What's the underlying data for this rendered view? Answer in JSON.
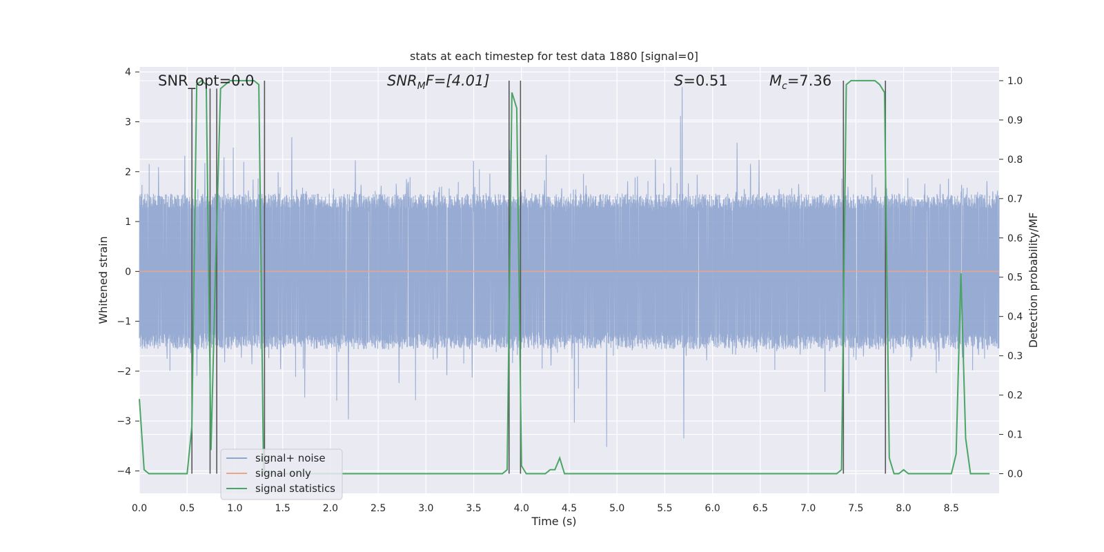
{
  "chart_data": {
    "type": "line",
    "title": "stats at each timestep for test data 1880 [signal=0]",
    "xlabel": "Time (s)",
    "ylabel": "Whitened strain",
    "y2label": "Detection probability/MF",
    "xlim": [
      0,
      9.0
    ],
    "ylim": [
      -4.45,
      4.1
    ],
    "y2lim": [
      -0.05,
      1.035
    ],
    "xticks": [
      "0.0",
      "0.5",
      "1.0",
      "1.5",
      "2.0",
      "2.5",
      "3.0",
      "3.5",
      "4.0",
      "4.5",
      "5.0",
      "5.5",
      "6.0",
      "6.5",
      "7.0",
      "7.5",
      "8.0",
      "8.5"
    ],
    "yticks": [
      "4",
      "3",
      "2",
      "1",
      "0",
      "−1",
      "−2",
      "−3",
      "−4"
    ],
    "y2ticks": [
      "1.0",
      "0.9",
      "0.8",
      "0.7",
      "0.6",
      "0.5",
      "0.4",
      "0.3",
      "0.2",
      "0.1",
      "0.0"
    ],
    "grid": true,
    "legend_position": "lower-left",
    "annotations": {
      "snr_opt": "SNR_opt=0.0",
      "snr_mf_main": "SNR",
      "snr_mf_sub": "M",
      "snr_mf_rest": "F=[4.01]",
      "s_main": "S",
      "s_rest": "=0.51",
      "mc_main": "M",
      "mc_sub": "c",
      "mc_rest": "=7.36"
    },
    "series": [
      {
        "name": "signal+ noise",
        "color": "#8fa5cf",
        "description_values": {
          "envelope_typical": [
            -1.7,
            1.4
          ],
          "extreme_range": [
            -3.6,
            3.7
          ]
        }
      },
      {
        "name": "signal only",
        "color": "#e9a48a",
        "y_constant": 0.0
      },
      {
        "name": "signal statistics",
        "color": "#4aa564",
        "axis": "right",
        "x": [
          0.0,
          0.05,
          0.1,
          0.15,
          0.2,
          0.25,
          0.3,
          0.35,
          0.4,
          0.45,
          0.5,
          0.55,
          0.6,
          0.65,
          0.7,
          0.75,
          0.8,
          0.85,
          0.9,
          0.95,
          1.0,
          1.05,
          1.1,
          1.15,
          1.2,
          1.25,
          1.3,
          1.35,
          1.4,
          1.45,
          1.5,
          1.55,
          1.6,
          1.65,
          1.7,
          1.75,
          1.8,
          1.85,
          1.9,
          1.95,
          2.0,
          2.5,
          3.0,
          3.5,
          3.8,
          3.85,
          3.9,
          3.95,
          4.0,
          4.05,
          4.1,
          4.15,
          4.2,
          4.25,
          4.3,
          4.35,
          4.4,
          4.45,
          4.5,
          4.55,
          4.6,
          5.0,
          5.5,
          6.0,
          6.5,
          7.0,
          7.3,
          7.35,
          7.4,
          7.45,
          7.5,
          7.55,
          7.6,
          7.65,
          7.7,
          7.75,
          7.8,
          7.85,
          7.9,
          7.95,
          8.0,
          8.05,
          8.1,
          8.15,
          8.2,
          8.3,
          8.4,
          8.5,
          8.55,
          8.6,
          8.65,
          8.7,
          8.75,
          8.8,
          8.85,
          8.9
        ],
        "values": [
          0.19,
          0.01,
          0.0,
          0.0,
          0.0,
          0.0,
          0.0,
          0.0,
          0.0,
          0.0,
          0.0,
          0.12,
          0.99,
          1.0,
          0.99,
          0.06,
          0.55,
          0.98,
          0.99,
          1.0,
          1.0,
          1.0,
          1.0,
          1.0,
          1.0,
          0.99,
          0.0,
          0.0,
          0.0,
          0.0,
          0.0,
          0.0,
          0.0,
          0.0,
          0.0,
          0.0,
          0.0,
          0.0,
          0.0,
          0.0,
          0.0,
          0.0,
          0.0,
          0.0,
          0.0,
          0.01,
          0.97,
          0.93,
          0.02,
          0.0,
          0.0,
          0.0,
          0.0,
          0.0,
          0.01,
          0.01,
          0.04,
          0.0,
          0.0,
          0.0,
          0.0,
          0.0,
          0.0,
          0.0,
          0.0,
          0.0,
          0.0,
          0.01,
          0.99,
          1.0,
          1.0,
          1.0,
          1.0,
          1.0,
          1.0,
          0.99,
          0.97,
          0.04,
          0.0,
          0.0,
          0.01,
          0.0,
          0.0,
          0.0,
          0.0,
          0.0,
          0.0,
          0.0,
          0.05,
          0.51,
          0.09,
          0.0,
          0.0,
          0.0,
          0.0,
          0.0
        ]
      }
    ],
    "vertical_markers": [
      0.55,
      0.74,
      0.81,
      1.31,
      3.87,
      3.99,
      7.37,
      7.81
    ],
    "vertical_marker_tops": [
      0.98,
      0.98,
      0.98,
      1.0,
      1.0,
      1.0,
      1.0,
      1.0
    ],
    "colors": {
      "plot_bg": "#eaeaf2",
      "grid": "#ffffff",
      "marker": "#555555"
    }
  }
}
